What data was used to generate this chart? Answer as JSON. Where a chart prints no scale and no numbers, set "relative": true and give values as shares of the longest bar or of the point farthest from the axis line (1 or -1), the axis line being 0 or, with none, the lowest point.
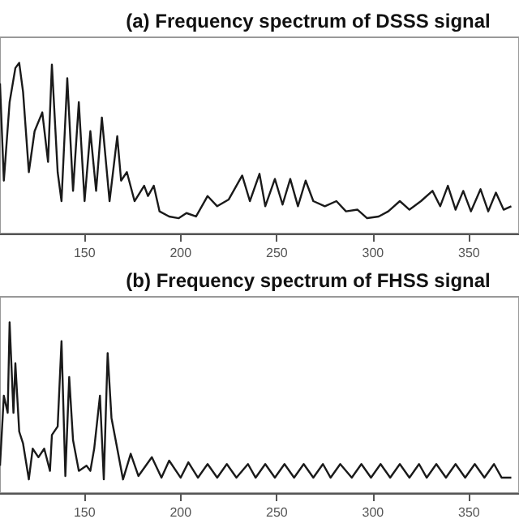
{
  "chart_data": [
    {
      "type": "line",
      "title": "(a) Frequency spectrum of DSSS signal",
      "relative": true,
      "marker": "none",
      "xlim": [
        106,
        376
      ],
      "xticks": [
        150,
        200,
        250,
        300,
        350
      ],
      "series": [
        {
          "color": "#1a1a1a",
          "x": [
            106,
            108,
            111,
            114,
            116,
            118,
            121,
            124,
            128,
            131,
            133,
            136,
            138,
            141,
            144,
            147,
            150,
            153,
            156,
            159,
            163,
            167,
            169,
            172,
            176,
            181,
            183,
            186,
            189,
            194,
            199,
            203,
            208,
            214,
            219,
            225,
            232,
            236,
            241,
            244,
            249,
            253,
            257,
            261,
            265,
            269,
            275,
            281,
            286,
            292,
            297,
            303,
            308,
            314,
            319,
            325,
            331,
            335,
            339,
            343,
            347,
            351,
            356,
            360,
            364,
            368,
            372
          ],
          "values": [
            0.88,
            0.31,
            0.77,
            0.97,
            1.0,
            0.83,
            0.36,
            0.6,
            0.71,
            0.42,
            0.99,
            0.36,
            0.19,
            0.91,
            0.25,
            0.77,
            0.19,
            0.6,
            0.25,
            0.68,
            0.19,
            0.57,
            0.31,
            0.36,
            0.19,
            0.28,
            0.22,
            0.28,
            0.13,
            0.1,
            0.09,
            0.12,
            0.1,
            0.22,
            0.16,
            0.2,
            0.34,
            0.19,
            0.35,
            0.16,
            0.32,
            0.17,
            0.32,
            0.16,
            0.31,
            0.19,
            0.16,
            0.19,
            0.13,
            0.14,
            0.09,
            0.1,
            0.13,
            0.19,
            0.14,
            0.19,
            0.25,
            0.16,
            0.28,
            0.14,
            0.25,
            0.13,
            0.26,
            0.13,
            0.24,
            0.14,
            0.16
          ]
        }
      ]
    },
    {
      "type": "line",
      "title": "(b) Frequency spectrum of FHSS signal",
      "relative": true,
      "marker": "none",
      "xlim": [
        106,
        376
      ],
      "xticks": [
        150,
        200,
        250,
        300,
        350
      ],
      "series": [
        {
          "color": "#1a1a1a",
          "x": [
            106,
            108,
            110,
            111,
            113,
            114,
            116,
            118,
            121,
            123,
            126,
            129,
            132,
            133,
            136,
            138,
            140,
            142,
            144,
            147,
            151,
            153,
            155,
            158,
            160,
            162,
            164,
            167,
            170,
            174,
            178,
            185,
            190,
            194,
            200,
            204,
            209,
            214,
            219,
            224,
            229,
            235,
            239,
            244,
            249,
            254,
            259,
            264,
            269,
            274,
            278,
            283,
            289,
            294,
            299,
            304,
            309,
            314,
            319,
            324,
            328,
            333,
            338,
            343,
            348,
            353,
            358,
            363,
            367,
            372
          ],
          "values": [
            0.16,
            0.57,
            0.47,
            1.0,
            0.47,
            0.76,
            0.36,
            0.29,
            0.08,
            0.26,
            0.21,
            0.26,
            0.13,
            0.34,
            0.39,
            0.89,
            0.1,
            0.68,
            0.31,
            0.13,
            0.16,
            0.13,
            0.26,
            0.57,
            0.08,
            0.82,
            0.44,
            0.26,
            0.08,
            0.23,
            0.1,
            0.21,
            0.09,
            0.19,
            0.09,
            0.18,
            0.09,
            0.17,
            0.09,
            0.17,
            0.09,
            0.17,
            0.09,
            0.17,
            0.09,
            0.17,
            0.09,
            0.17,
            0.09,
            0.17,
            0.09,
            0.17,
            0.09,
            0.17,
            0.09,
            0.17,
            0.09,
            0.17,
            0.09,
            0.17,
            0.09,
            0.17,
            0.09,
            0.17,
            0.09,
            0.17,
            0.09,
            0.17,
            0.09,
            0.09
          ]
        }
      ]
    }
  ]
}
